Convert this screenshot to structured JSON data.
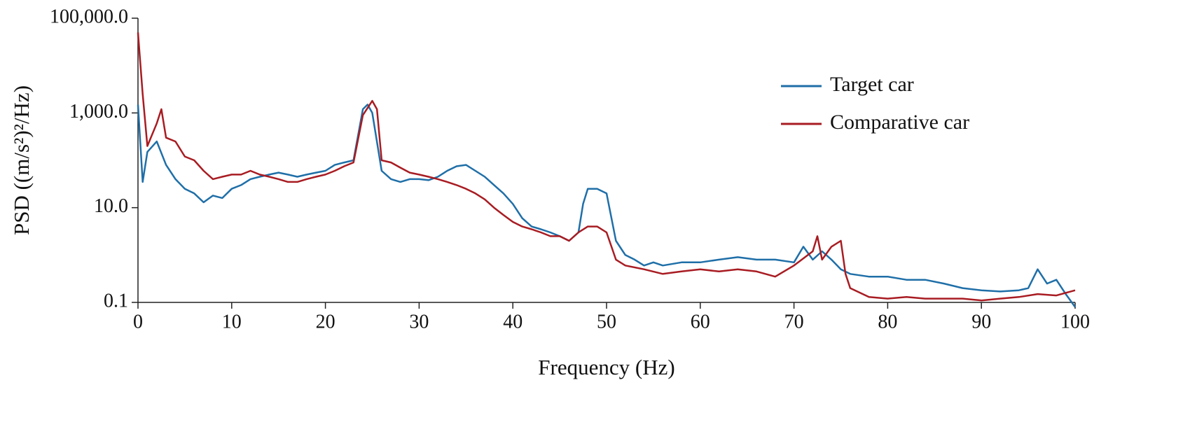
{
  "chart_data": {
    "type": "line",
    "x_label": "Frequency (Hz)",
    "y_label": "PSD ((m/s²)²/Hz)",
    "xlim": [
      0,
      100
    ],
    "xticks": [
      0,
      10,
      20,
      30,
      40,
      50,
      60,
      70,
      80,
      90,
      100
    ],
    "ylim": [
      0.1,
      100000
    ],
    "yticks": [
      0.1,
      {
        "value": 10,
        "label": "10.0"
      },
      {
        "value": 1000,
        "label": "1,000.0"
      },
      {
        "value": 100000,
        "label": "100,000.0"
      }
    ],
    "y_scale": "log",
    "grid": false,
    "legend": "upper right",
    "series": [
      {
        "name": "Target car",
        "color": "#1f6fa8",
        "x": [
          0,
          0.5,
          1,
          2,
          3,
          4,
          5,
          6,
          7,
          8,
          9,
          10,
          11,
          12,
          13,
          14,
          15,
          16,
          17,
          18,
          19,
          20,
          21,
          22,
          23,
          24,
          24.5,
          25,
          26,
          27,
          28,
          29,
          30,
          31,
          32,
          33,
          34,
          35,
          36,
          37,
          38,
          39,
          40,
          41,
          42,
          43,
          44,
          45,
          46,
          47,
          47.5,
          48,
          49,
          50,
          51,
          52,
          53,
          54,
          55,
          56,
          58,
          60,
          62,
          64,
          66,
          68,
          70,
          71,
          72,
          73,
          74,
          75,
          76,
          78,
          80,
          82,
          84,
          86,
          88,
          90,
          92,
          94,
          95,
          96,
          97,
          98,
          99,
          100
        ],
        "values": [
          1500,
          35,
          150,
          250,
          80,
          40,
          25,
          20,
          13,
          18,
          16,
          25,
          30,
          40,
          45,
          50,
          55,
          50,
          45,
          50,
          55,
          60,
          80,
          90,
          100,
          1200,
          1500,
          1000,
          60,
          40,
          35,
          40,
          40,
          38,
          45,
          60,
          75,
          80,
          60,
          45,
          30,
          20,
          12,
          6,
          4,
          3.5,
          3,
          2.5,
          2,
          3,
          12,
          25,
          25,
          20,
          2,
          1,
          0.8,
          0.6,
          0.7,
          0.6,
          0.7,
          0.7,
          0.8,
          0.9,
          0.8,
          0.8,
          0.7,
          1.5,
          0.8,
          1.2,
          0.8,
          0.5,
          0.4,
          0.35,
          0.35,
          0.3,
          0.3,
          0.25,
          0.2,
          0.18,
          0.17,
          0.18,
          0.2,
          0.5,
          0.25,
          0.3,
          0.15,
          0.08
        ]
      },
      {
        "name": "Comparative car",
        "color": "#a81c22",
        "x": [
          0,
          0.5,
          1,
          2,
          2.5,
          3,
          4,
          5,
          6,
          7,
          8,
          9,
          10,
          11,
          12,
          13,
          14,
          15,
          16,
          17,
          18,
          19,
          20,
          21,
          22,
          23,
          24,
          25,
          25.5,
          26,
          27,
          28,
          29,
          30,
          31,
          32,
          33,
          34,
          35,
          36,
          37,
          38,
          39,
          40,
          41,
          42,
          43,
          44,
          45,
          46,
          47,
          48,
          49,
          50,
          51,
          52,
          54,
          56,
          58,
          60,
          62,
          64,
          66,
          68,
          70,
          72,
          72.5,
          73,
          74,
          75,
          75.5,
          76,
          78,
          80,
          82,
          84,
          86,
          88,
          90,
          92,
          94,
          96,
          98,
          100
        ],
        "values": [
          50000,
          2500,
          200,
          600,
          1200,
          300,
          250,
          120,
          100,
          60,
          40,
          45,
          50,
          50,
          60,
          50,
          45,
          40,
          35,
          35,
          40,
          45,
          50,
          60,
          75,
          90,
          900,
          1800,
          1200,
          100,
          90,
          70,
          55,
          50,
          45,
          40,
          35,
          30,
          25,
          20,
          15,
          10,
          7,
          5,
          4,
          3.5,
          3,
          2.5,
          2.5,
          2,
          3,
          4,
          4,
          3,
          0.8,
          0.6,
          0.5,
          0.4,
          0.45,
          0.5,
          0.45,
          0.5,
          0.45,
          0.35,
          0.6,
          1.2,
          2.5,
          0.8,
          1.5,
          2,
          0.4,
          0.2,
          0.13,
          0.12,
          0.13,
          0.12,
          0.12,
          0.12,
          0.11,
          0.12,
          0.13,
          0.15,
          0.14,
          0.18
        ]
      }
    ]
  }
}
